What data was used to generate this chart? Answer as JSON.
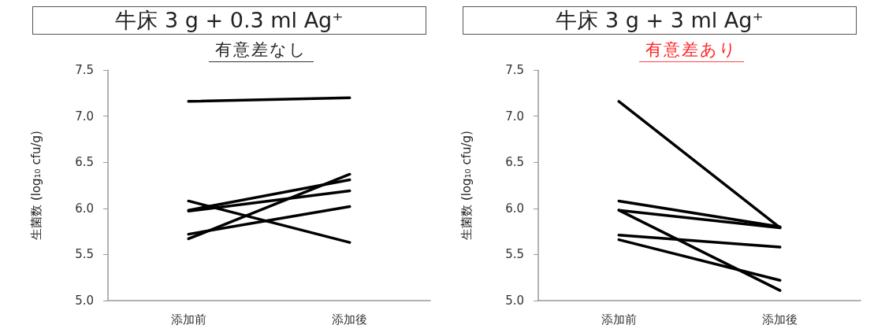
{
  "chart_data": [
    {
      "type": "line",
      "title": "牛床 3 g + 0.3 ml Ag⁺",
      "subtitle": "有意差なし",
      "ylabel": "生菌数 (log₁₀ cfu/g)",
      "categories": [
        "添加前",
        "添加後"
      ],
      "ylim": [
        5,
        7.5
      ],
      "yticks": [
        {
          "value": 5,
          "label": "5.0"
        },
        {
          "value": 5.5,
          "label": "5.5"
        },
        {
          "value": 6,
          "label": "6.0"
        },
        {
          "value": 6.5,
          "label": "6.5"
        },
        {
          "value": 7,
          "label": "7.0"
        },
        {
          "value": 7.5,
          "label": "7.5"
        }
      ],
      "grid": false,
      "marker": "none",
      "line_style": "solid",
      "series": [
        {
          "color": "#000000",
          "values": [
            7.16,
            7.2
          ]
        },
        {
          "color": "#000000",
          "values": [
            6.08,
            5.63
          ]
        },
        {
          "color": "#000000",
          "values": [
            5.97,
            6.19
          ]
        },
        {
          "color": "#000000",
          "values": [
            5.98,
            6.31
          ]
        },
        {
          "color": "#000000",
          "values": [
            5.72,
            6.02
          ]
        },
        {
          "color": "#000000",
          "values": [
            5.67,
            6.37
          ]
        }
      ]
    },
    {
      "type": "line",
      "title": "牛床 3 g + 3 ml Ag⁺",
      "subtitle": "有意差あり",
      "ylabel": "生菌数 (log₁₀ cfu/g)",
      "categories": [
        "添加前",
        "添加後"
      ],
      "ylim": [
        5,
        7.5
      ],
      "yticks": [
        {
          "value": 5,
          "label": "5.0"
        },
        {
          "value": 5.5,
          "label": "5.5"
        },
        {
          "value": 6,
          "label": "6.0"
        },
        {
          "value": 6.5,
          "label": "6.5"
        },
        {
          "value": 7,
          "label": "7.0"
        },
        {
          "value": 7.5,
          "label": "7.5"
        }
      ],
      "grid": false,
      "marker": "none",
      "line_style": "solid",
      "series": [
        {
          "color": "#000000",
          "values": [
            7.16,
            5.79
          ]
        },
        {
          "color": "#000000",
          "values": [
            6.08,
            5.8
          ]
        },
        {
          "color": "#000000",
          "values": [
            5.98,
            5.79
          ]
        },
        {
          "color": "#000000",
          "values": [
            5.98,
            5.11
          ]
        },
        {
          "color": "#000000",
          "values": [
            5.71,
            5.58
          ]
        },
        {
          "color": "#000000",
          "values": [
            5.66,
            5.22
          ]
        }
      ]
    }
  ]
}
